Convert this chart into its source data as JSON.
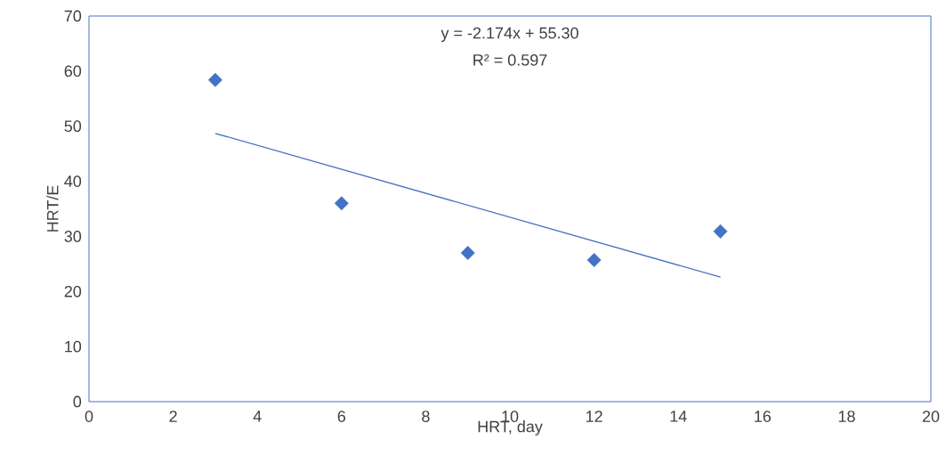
{
  "chart_data": {
    "type": "scatter",
    "xlabel": "HRT, day",
    "ylabel": "HRT/E",
    "annotations": [
      "y = -2.174x + 55.30",
      "R² = 0.597"
    ],
    "xlim": [
      0,
      20
    ],
    "xticks": [
      0,
      2,
      4,
      6,
      8,
      10,
      12,
      14,
      16,
      18,
      20
    ],
    "ylim": [
      0,
      70
    ],
    "yticks": [
      0,
      10,
      20,
      30,
      40,
      50,
      60,
      70
    ],
    "marker": "diamond",
    "series": [
      {
        "type": "scatter",
        "color": "#4472c4",
        "x": [
          3,
          6,
          9,
          12,
          15
        ],
        "values": [
          58.4,
          36.0,
          27.0,
          25.7,
          30.9
        ]
      },
      {
        "type": "line",
        "color": "#4472c4",
        "marker": "none",
        "line_style": "solid",
        "x": [
          3,
          15
        ],
        "values": [
          48.7,
          22.6
        ]
      }
    ]
  }
}
